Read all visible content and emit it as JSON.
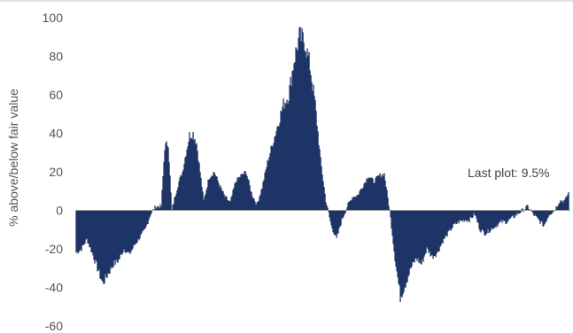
{
  "chart_data": {
    "type": "area",
    "title": "",
    "xlabel": "",
    "ylabel": "% above/below fair value",
    "ylim": [
      -60,
      100
    ],
    "yticks": [
      "100",
      "80",
      "60",
      "40",
      "20",
      "0",
      "-20",
      "-40",
      "-60"
    ],
    "grid": false,
    "legend": "none",
    "fill_color": "#1f3466",
    "annotation": "Last plot: 9.5%",
    "series": [
      {
        "index": [
          0,
          6,
          12,
          18,
          24,
          30,
          36,
          42,
          48,
          54,
          60,
          66,
          72,
          78,
          84,
          90,
          96,
          100,
          104,
          108,
          112,
          116,
          120,
          124,
          128,
          132,
          136,
          140,
          144,
          150,
          156,
          162,
          168,
          174,
          180,
          186,
          192,
          198,
          204,
          210,
          216,
          222,
          228,
          234,
          240,
          246,
          252,
          258,
          264,
          270,
          276,
          282,
          288,
          294,
          300,
          306,
          312,
          318,
          324,
          330,
          336,
          342,
          348,
          354,
          360,
          366,
          372,
          378,
          384,
          390,
          396,
          402,
          408,
          414,
          420,
          426,
          432,
          438,
          444,
          450,
          456,
          462,
          468,
          474,
          480,
          486,
          492,
          498,
          504,
          510,
          516,
          522,
          528,
          534,
          540,
          546,
          552,
          556
        ],
        "values": [
          -22,
          -20,
          -15,
          -22,
          -30,
          -38,
          -33,
          -28,
          -26,
          -20,
          -23,
          -18,
          -14,
          -10,
          -2,
          2,
          2,
          33,
          35,
          0,
          8,
          15,
          20,
          30,
          39,
          40,
          35,
          20,
          5,
          17,
          20,
          13,
          7,
          4,
          15,
          18,
          20,
          9,
          3,
          12,
          25,
          35,
          45,
          55,
          60,
          78,
          90,
          88,
          75,
          55,
          26,
          5,
          -8,
          -15,
          -5,
          2,
          7,
          8,
          13,
          18,
          15,
          18,
          19,
          0,
          -25,
          -45,
          -38,
          -30,
          -25,
          -28,
          -20,
          -24,
          -22,
          -16,
          -12,
          -8,
          -6,
          -5,
          -5,
          -2,
          -10,
          -12,
          -10,
          -8,
          -6,
          -6,
          -4,
          -2,
          0,
          2,
          -2,
          -5,
          -8,
          -2,
          0,
          5,
          5,
          9.5
        ]
      }
    ]
  }
}
